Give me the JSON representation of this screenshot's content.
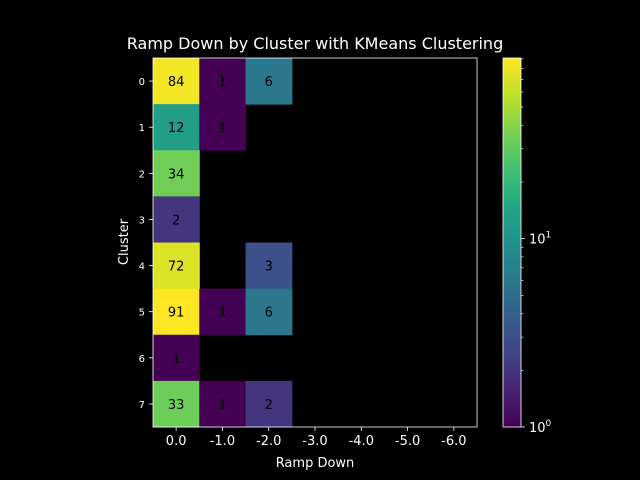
{
  "chart_data": {
    "type": "heatmap",
    "title": "Ramp Down by Cluster with KMeans Clustering",
    "xlabel": "Ramp Down",
    "ylabel": "Cluster",
    "x_categories": [
      "0.0",
      "-1.0",
      "-2.0",
      "-3.0",
      "-4.0",
      "-5.0",
      "-6.0"
    ],
    "y_categories": [
      "0",
      "1",
      "2",
      "3",
      "4",
      "5",
      "6",
      "7"
    ],
    "values": [
      [
        84,
        1,
        6,
        null,
        null,
        null,
        null
      ],
      [
        12,
        1,
        null,
        null,
        null,
        null,
        null
      ],
      [
        34,
        null,
        null,
        null,
        null,
        null,
        null
      ],
      [
        2,
        null,
        null,
        null,
        null,
        null,
        null
      ],
      [
        72,
        null,
        3,
        null,
        null,
        null,
        null
      ],
      [
        91,
        1,
        6,
        null,
        null,
        null,
        null
      ],
      [
        1,
        null,
        null,
        null,
        null,
        null,
        null
      ],
      [
        33,
        1,
        2,
        null,
        null,
        null,
        null
      ]
    ],
    "colorbar": {
      "scale": "log",
      "colormap": "viridis",
      "min": 1,
      "max": 91,
      "ticks": [
        {
          "value": 1,
          "base": "10",
          "exp": "0"
        },
        {
          "value": 10,
          "base": "10",
          "exp": "1"
        }
      ]
    },
    "colors": {
      "background": "#000000",
      "foreground": "#ffffff"
    }
  }
}
